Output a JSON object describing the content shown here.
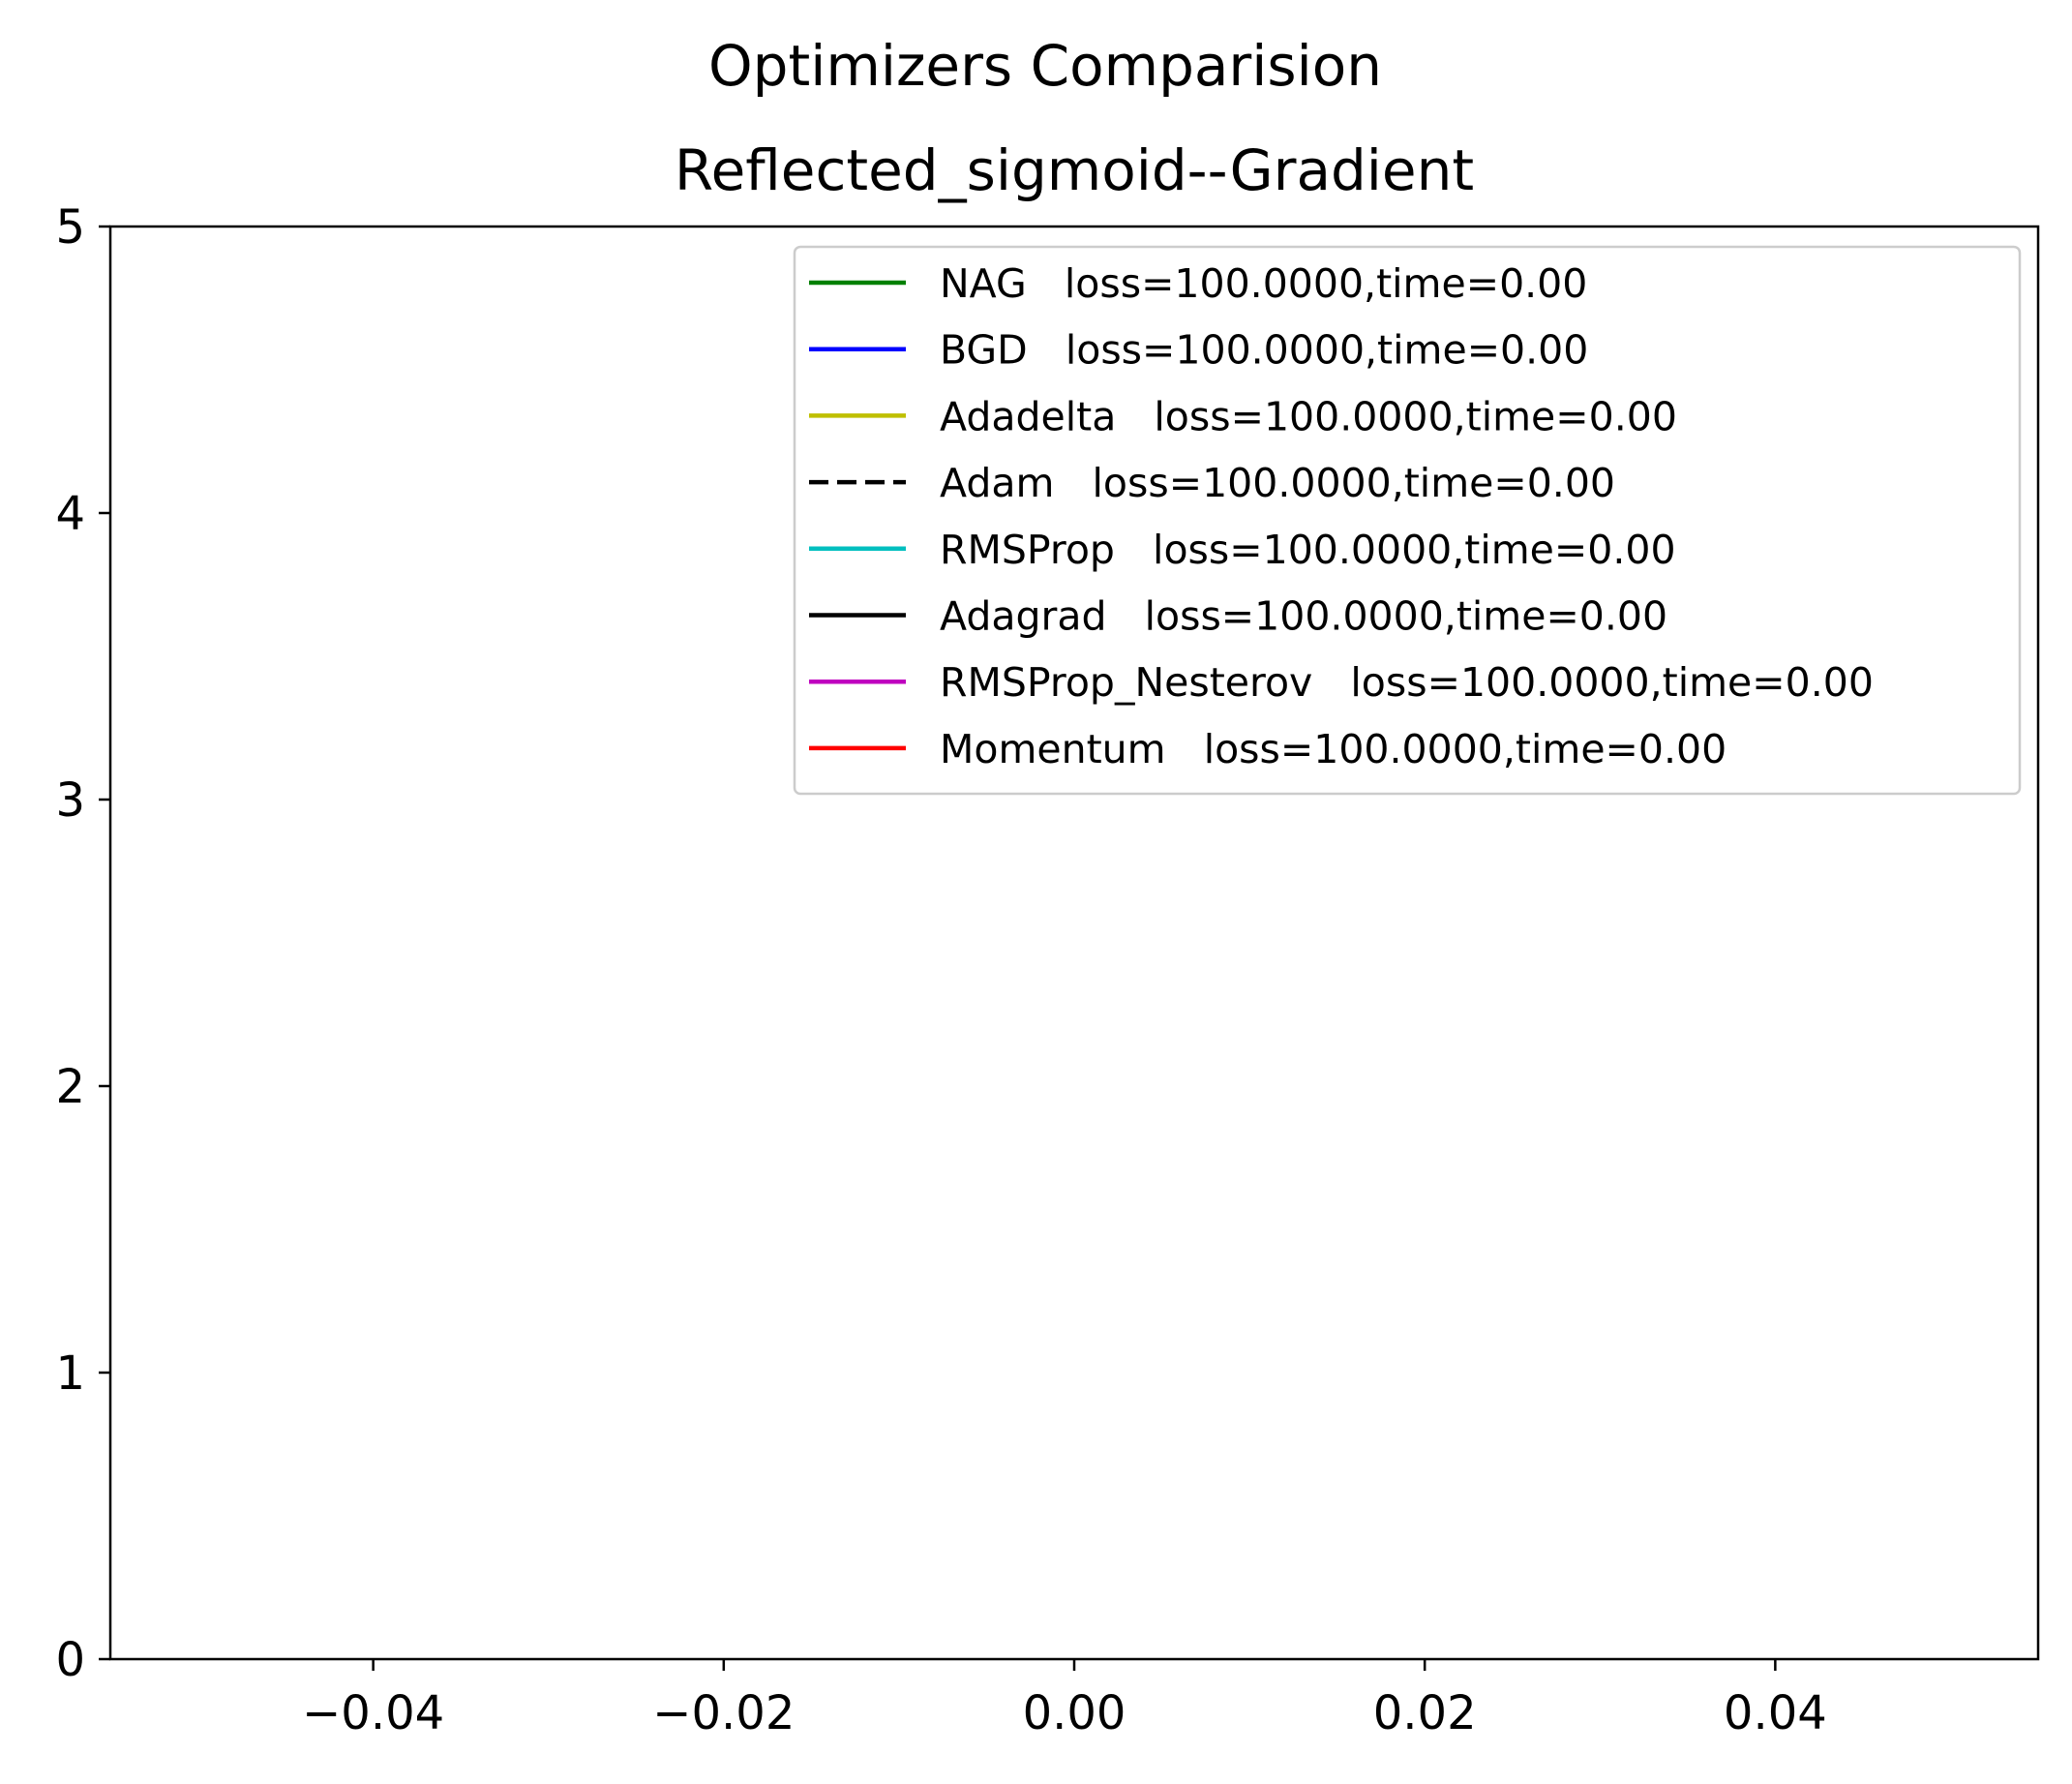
{
  "chart_data": {
    "type": "line",
    "title": "Optimizers Comparision",
    "subtitle": "Reflected_sigmoid--Gradient",
    "xlabel": "",
    "ylabel": "",
    "xlim": [
      -0.055,
      0.055
    ],
    "ylim": [
      0,
      5
    ],
    "x_ticks": [
      -0.04,
      -0.02,
      0.0,
      0.02,
      0.04
    ],
    "x_tick_labels": [
      "−0.04",
      "−0.02",
      "0.00",
      "0.02",
      "0.04"
    ],
    "y_ticks": [
      0,
      1,
      2,
      3,
      4,
      5
    ],
    "y_tick_labels": [
      "0",
      "1",
      "2",
      "3",
      "4",
      "5"
    ],
    "grid": false,
    "legend_position": "top-right",
    "series": [
      {
        "name": "NAG",
        "label": "NAG   loss=100.0000,time=0.00",
        "color": "#008000",
        "dash": false,
        "x": [],
        "y": []
      },
      {
        "name": "BGD",
        "label": "BGD   loss=100.0000,time=0.00",
        "color": "#0000ff",
        "dash": false,
        "x": [],
        "y": []
      },
      {
        "name": "Adadelta",
        "label": "Adadelta   loss=100.0000,time=0.00",
        "color": "#bfbf00",
        "dash": false,
        "x": [],
        "y": []
      },
      {
        "name": "Adam",
        "label": "Adam   loss=100.0000,time=0.00",
        "color": "#000000",
        "dash": true,
        "x": [],
        "y": []
      },
      {
        "name": "RMSProp",
        "label": "RMSProp   loss=100.0000,time=0.00",
        "color": "#00bfbf",
        "dash": false,
        "x": [],
        "y": []
      },
      {
        "name": "Adagrad",
        "label": "Adagrad   loss=100.0000,time=0.00",
        "color": "#000000",
        "dash": false,
        "x": [],
        "y": []
      },
      {
        "name": "RMSProp_Nesterov",
        "label": "RMSProp_Nesterov   loss=100.0000,time=0.00",
        "color": "#bf00bf",
        "dash": false,
        "x": [],
        "y": []
      },
      {
        "name": "Momentum",
        "label": "Momentum   loss=100.0000,time=0.00",
        "color": "#ff0000",
        "dash": false,
        "x": [],
        "y": []
      }
    ]
  }
}
